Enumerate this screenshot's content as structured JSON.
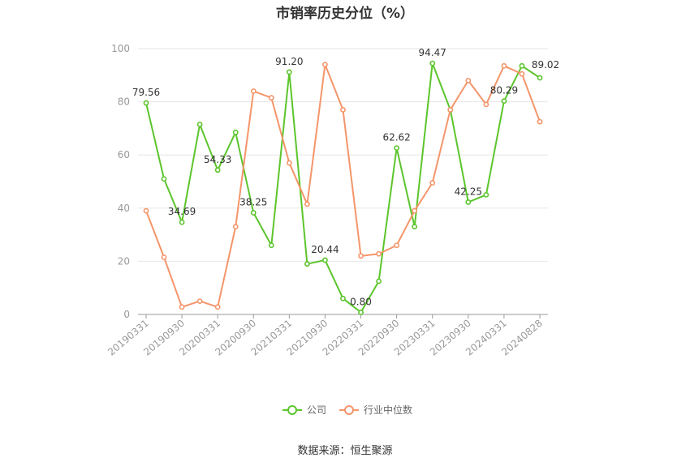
{
  "chart_data": {
    "type": "line",
    "title": "市销率历史分位（%）",
    "source": "数据来源：恒生聚源",
    "ylim": [
      0,
      100
    ],
    "yticks": [
      0,
      20,
      40,
      60,
      80,
      100
    ],
    "grid": true,
    "legend_position": "bottom",
    "x": [
      "20190331",
      "20190630",
      "20190930",
      "20191231",
      "20200331",
      "20200630",
      "20200930",
      "20201231",
      "20210331",
      "20210630",
      "20210930",
      "20211231",
      "20220331",
      "20220630",
      "20220930",
      "20221231",
      "20230331",
      "20230630",
      "20230930",
      "20231231",
      "20240331",
      "20240630",
      "20240828"
    ],
    "x_tick_labels": [
      "20190331",
      "20190930",
      "20200331",
      "20200930",
      "20210331",
      "20210930",
      "20220331",
      "20220930",
      "20230331",
      "20230930",
      "20240331",
      "20240828"
    ],
    "series": [
      {
        "name": "公司",
        "color": "#5cc52c",
        "values": [
          79.56,
          51.0,
          34.69,
          71.5,
          54.33,
          68.5,
          38.25,
          26.0,
          91.2,
          19.0,
          20.44,
          6.0,
          0.8,
          12.5,
          62.62,
          33.0,
          94.47,
          77.0,
          42.25,
          45.0,
          80.29,
          93.5,
          89.02
        ],
        "labels": {
          "0": "79.56",
          "2": "34.69",
          "4": "54.33",
          "6": "38.25",
          "8": "91.20",
          "10": "20.44",
          "12": "0.80",
          "14": "62.62",
          "16": "94.47",
          "18": "42.25",
          "20": "80.29",
          "22": "89.02"
        }
      },
      {
        "name": "行业中位数",
        "color": "#f4956a",
        "values": [
          39.0,
          21.5,
          2.8,
          5.0,
          2.8,
          33.0,
          84.0,
          81.5,
          57.0,
          41.5,
          94.0,
          77.0,
          22.0,
          22.8,
          26.0,
          39.0,
          49.5,
          77.0,
          88.0,
          79.0,
          93.5,
          90.5,
          72.5
        ]
      }
    ]
  }
}
